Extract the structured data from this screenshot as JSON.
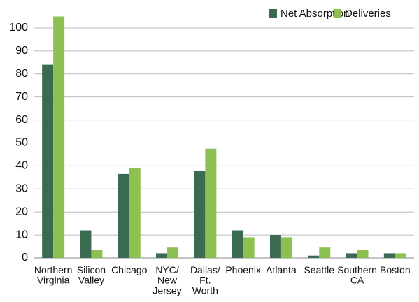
{
  "chart_data": {
    "type": "bar",
    "categories": [
      "Northern\nVirginia",
      "Silicon\nValley",
      "Chicago",
      "NYC/\nNew\nJersey",
      "Dallas/\nFt.\nWorth",
      "Phoenix",
      "Atlanta",
      "Seattle",
      "Southern\nCA",
      "Boston"
    ],
    "series": [
      {
        "name": "Net Absorption",
        "color": "#3a6b50",
        "values": [
          84,
          12,
          36.5,
          2,
          38,
          12,
          10,
          1,
          2,
          2
        ]
      },
      {
        "name": "Deliveries",
        "color": "#8cc152",
        "values": [
          105,
          3.5,
          39,
          4.5,
          47.5,
          9,
          9,
          4.5,
          3.5,
          2
        ]
      }
    ],
    "ylim": [
      0,
      105
    ],
    "yticks": [
      0,
      10,
      20,
      30,
      40,
      50,
      60,
      70,
      80,
      90,
      100
    ],
    "grid": true,
    "legend": "top-right"
  }
}
